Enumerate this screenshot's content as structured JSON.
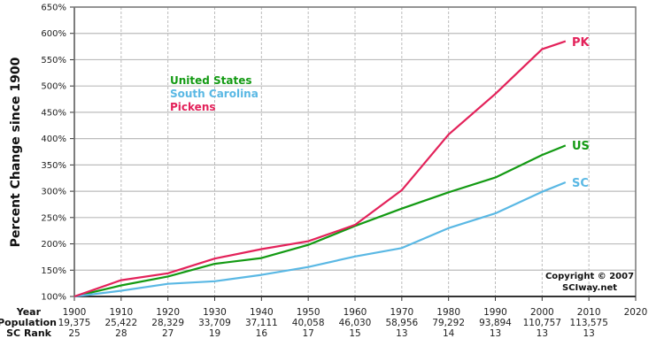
{
  "chart_data": {
    "type": "line",
    "title": "",
    "xlabel": "Year",
    "ylabel": "Percent Change since 1900",
    "ylim": [
      100,
      650
    ],
    "xlim": [
      1900,
      2020
    ],
    "y_ticks": [
      "100%",
      "150%",
      "200%",
      "250%",
      "300%",
      "350%",
      "400%",
      "450%",
      "500%",
      "550%",
      "600%",
      "650%"
    ],
    "x_ticks": [
      "1900",
      "1910",
      "1920",
      "1930",
      "1940",
      "1950",
      "1960",
      "1970",
      "1980",
      "1990",
      "2000",
      "2010",
      "2020"
    ],
    "grid": {
      "horizontal": "solid",
      "vertical": "dashed"
    },
    "x": [
      1900,
      1910,
      1920,
      1930,
      1940,
      1950,
      1960,
      1970,
      1980,
      1990,
      2000,
      2005
    ],
    "series": [
      {
        "name": "United States",
        "short": "US",
        "color": "#139a13",
        "values": [
          100,
          121,
          138,
          162,
          173,
          198,
          234,
          267,
          298,
          326,
          369,
          387
        ]
      },
      {
        "name": "South Carolina",
        "short": "SC",
        "color": "#5ab8e4",
        "values": [
          100,
          111,
          124,
          129,
          141,
          156,
          176,
          192,
          230,
          258,
          299,
          317
        ]
      },
      {
        "name": "Pickens",
        "short": "PK",
        "color": "#e3225a",
        "values": [
          100,
          131,
          144,
          172,
          190,
          205,
          236,
          302,
          408,
          485,
          570,
          585
        ]
      }
    ],
    "legend": {
      "position": "upper-left inside plot",
      "entries": [
        "United States",
        "South Carolina",
        "Pickens"
      ]
    },
    "annotations": [
      "PK",
      "US",
      "SC",
      "Copyright © 2007",
      "SCIway.net"
    ]
  },
  "axis": {
    "ylabel": "Percent Change since 1900"
  },
  "legend": {
    "us": "United States",
    "sc": "South Carolina",
    "pk": "Pickens"
  },
  "end_labels": {
    "pk": "PK",
    "us": "US",
    "sc": "SC"
  },
  "copyright": {
    "line1": "Copyright © 2007",
    "line2": "SCIway.net"
  },
  "table": {
    "headers": {
      "year": "Year",
      "population": "Population",
      "rank": "SC Rank"
    },
    "years": [
      "1900",
      "1910",
      "1920",
      "1930",
      "1940",
      "1950",
      "1960",
      "1970",
      "1980",
      "1990",
      "2000",
      "2010",
      "2020"
    ],
    "population": [
      "19,375",
      "25,422",
      "28,329",
      "33,709",
      "37,111",
      "40,058",
      "46,030",
      "58,956",
      "79,292",
      "93,894",
      "110,757",
      "113,575",
      ""
    ],
    "rank": [
      "25",
      "28",
      "27",
      "19",
      "16",
      "17",
      "15",
      "13",
      "14",
      "13",
      "13",
      "13",
      ""
    ]
  },
  "colors": {
    "us": "#139a13",
    "sc": "#5ab8e4",
    "pk": "#e3225a",
    "grid": "#bcbcbc",
    "axis": "#777777"
  }
}
